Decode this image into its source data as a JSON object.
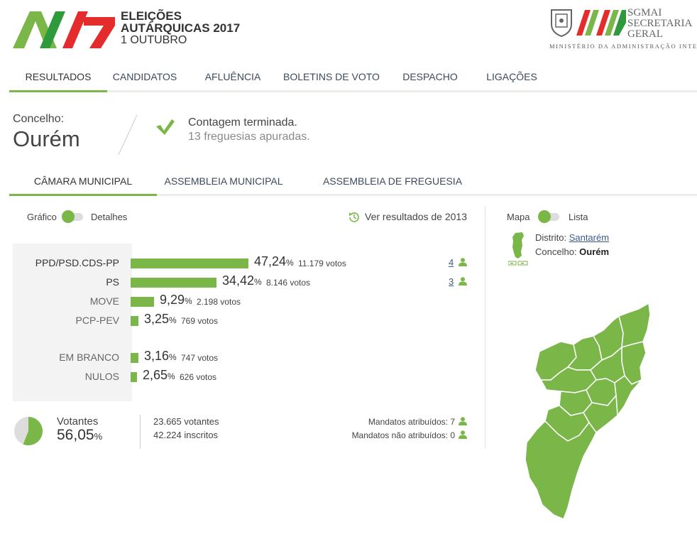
{
  "header": {
    "logo_line1": "ELEIÇÕES",
    "logo_line2": "AUTÁRQUICAS 2017",
    "logo_line3": "1 OUTUBRO",
    "sgmai_line1": "SGMAI",
    "sgmai_line2": "SECRETARIA",
    "sgmai_line3": "GERAL",
    "ministry": "MINISTÉRIO DA ADMINISTRAÇÃO INTERNA"
  },
  "nav": {
    "tabs": [
      {
        "label": "RESULTADOS"
      },
      {
        "label": "CANDIDATOS"
      },
      {
        "label": "AFLUÊNCIA"
      },
      {
        "label": "BOLETINS DE VOTO"
      },
      {
        "label": "DESPACHO"
      },
      {
        "label": "LIGAÇÕES"
      }
    ]
  },
  "concelho": {
    "label": "Concelho:",
    "name": "Ourém",
    "status_line1": "Contagem terminada.",
    "status_line2": "13 freguesias apuradas."
  },
  "subnav": {
    "tabs": [
      {
        "label": "CÂMARA MUNICIPAL"
      },
      {
        "label": "ASSEMBLEIA MUNICIPAL"
      },
      {
        "label": "ASSEMBLEIA DE FREGUESIA"
      }
    ]
  },
  "toggles": {
    "left_a": "Gráfico",
    "left_b": "Detalhes",
    "right_a": "Mapa",
    "right_b": "Lista"
  },
  "ver2013": "Ver resultados de 2013",
  "results": [
    {
      "name": "PPD/PSD.CDS-PP",
      "pct": "47,24",
      "votes": "11.179 votos",
      "mandates": "4",
      "value": 47.24
    },
    {
      "name": "PS",
      "pct": "34,42",
      "votes": "8.146 votos",
      "mandates": "3",
      "value": 34.42
    },
    {
      "name": "MOVE",
      "pct": "9,29",
      "votes": "2.198 votos",
      "mandates": "",
      "value": 9.29
    },
    {
      "name": "PCP-PEV",
      "pct": "3,25",
      "votes": "769 votos",
      "mandates": "",
      "value": 3.25
    },
    {
      "name": "EM BRANCO",
      "pct": "3,16",
      "votes": "747 votos",
      "mandates": "",
      "value": 3.16
    },
    {
      "name": "NULOS",
      "pct": "2,65",
      "votes": "626 votos",
      "mandates": "",
      "value": 2.65
    }
  ],
  "pct_symbol": "%",
  "turnout": {
    "label": "Votantes",
    "pct": "56,05",
    "value": 56.05,
    "voters": "23.665 votantes",
    "registered": "42.224 inscritos",
    "mandates_assigned": "Mandatos atribuídos: 7",
    "mandates_unassigned": "Mandatos não atribuídos: 0"
  },
  "location": {
    "district_label": "Distrito:",
    "district": "Santarém",
    "concelho_label": "Concelho:",
    "concelho": "Ourém"
  },
  "colors": {
    "accent": "#7ab648",
    "red": "#e42c2c",
    "link": "#3a5a8a"
  }
}
